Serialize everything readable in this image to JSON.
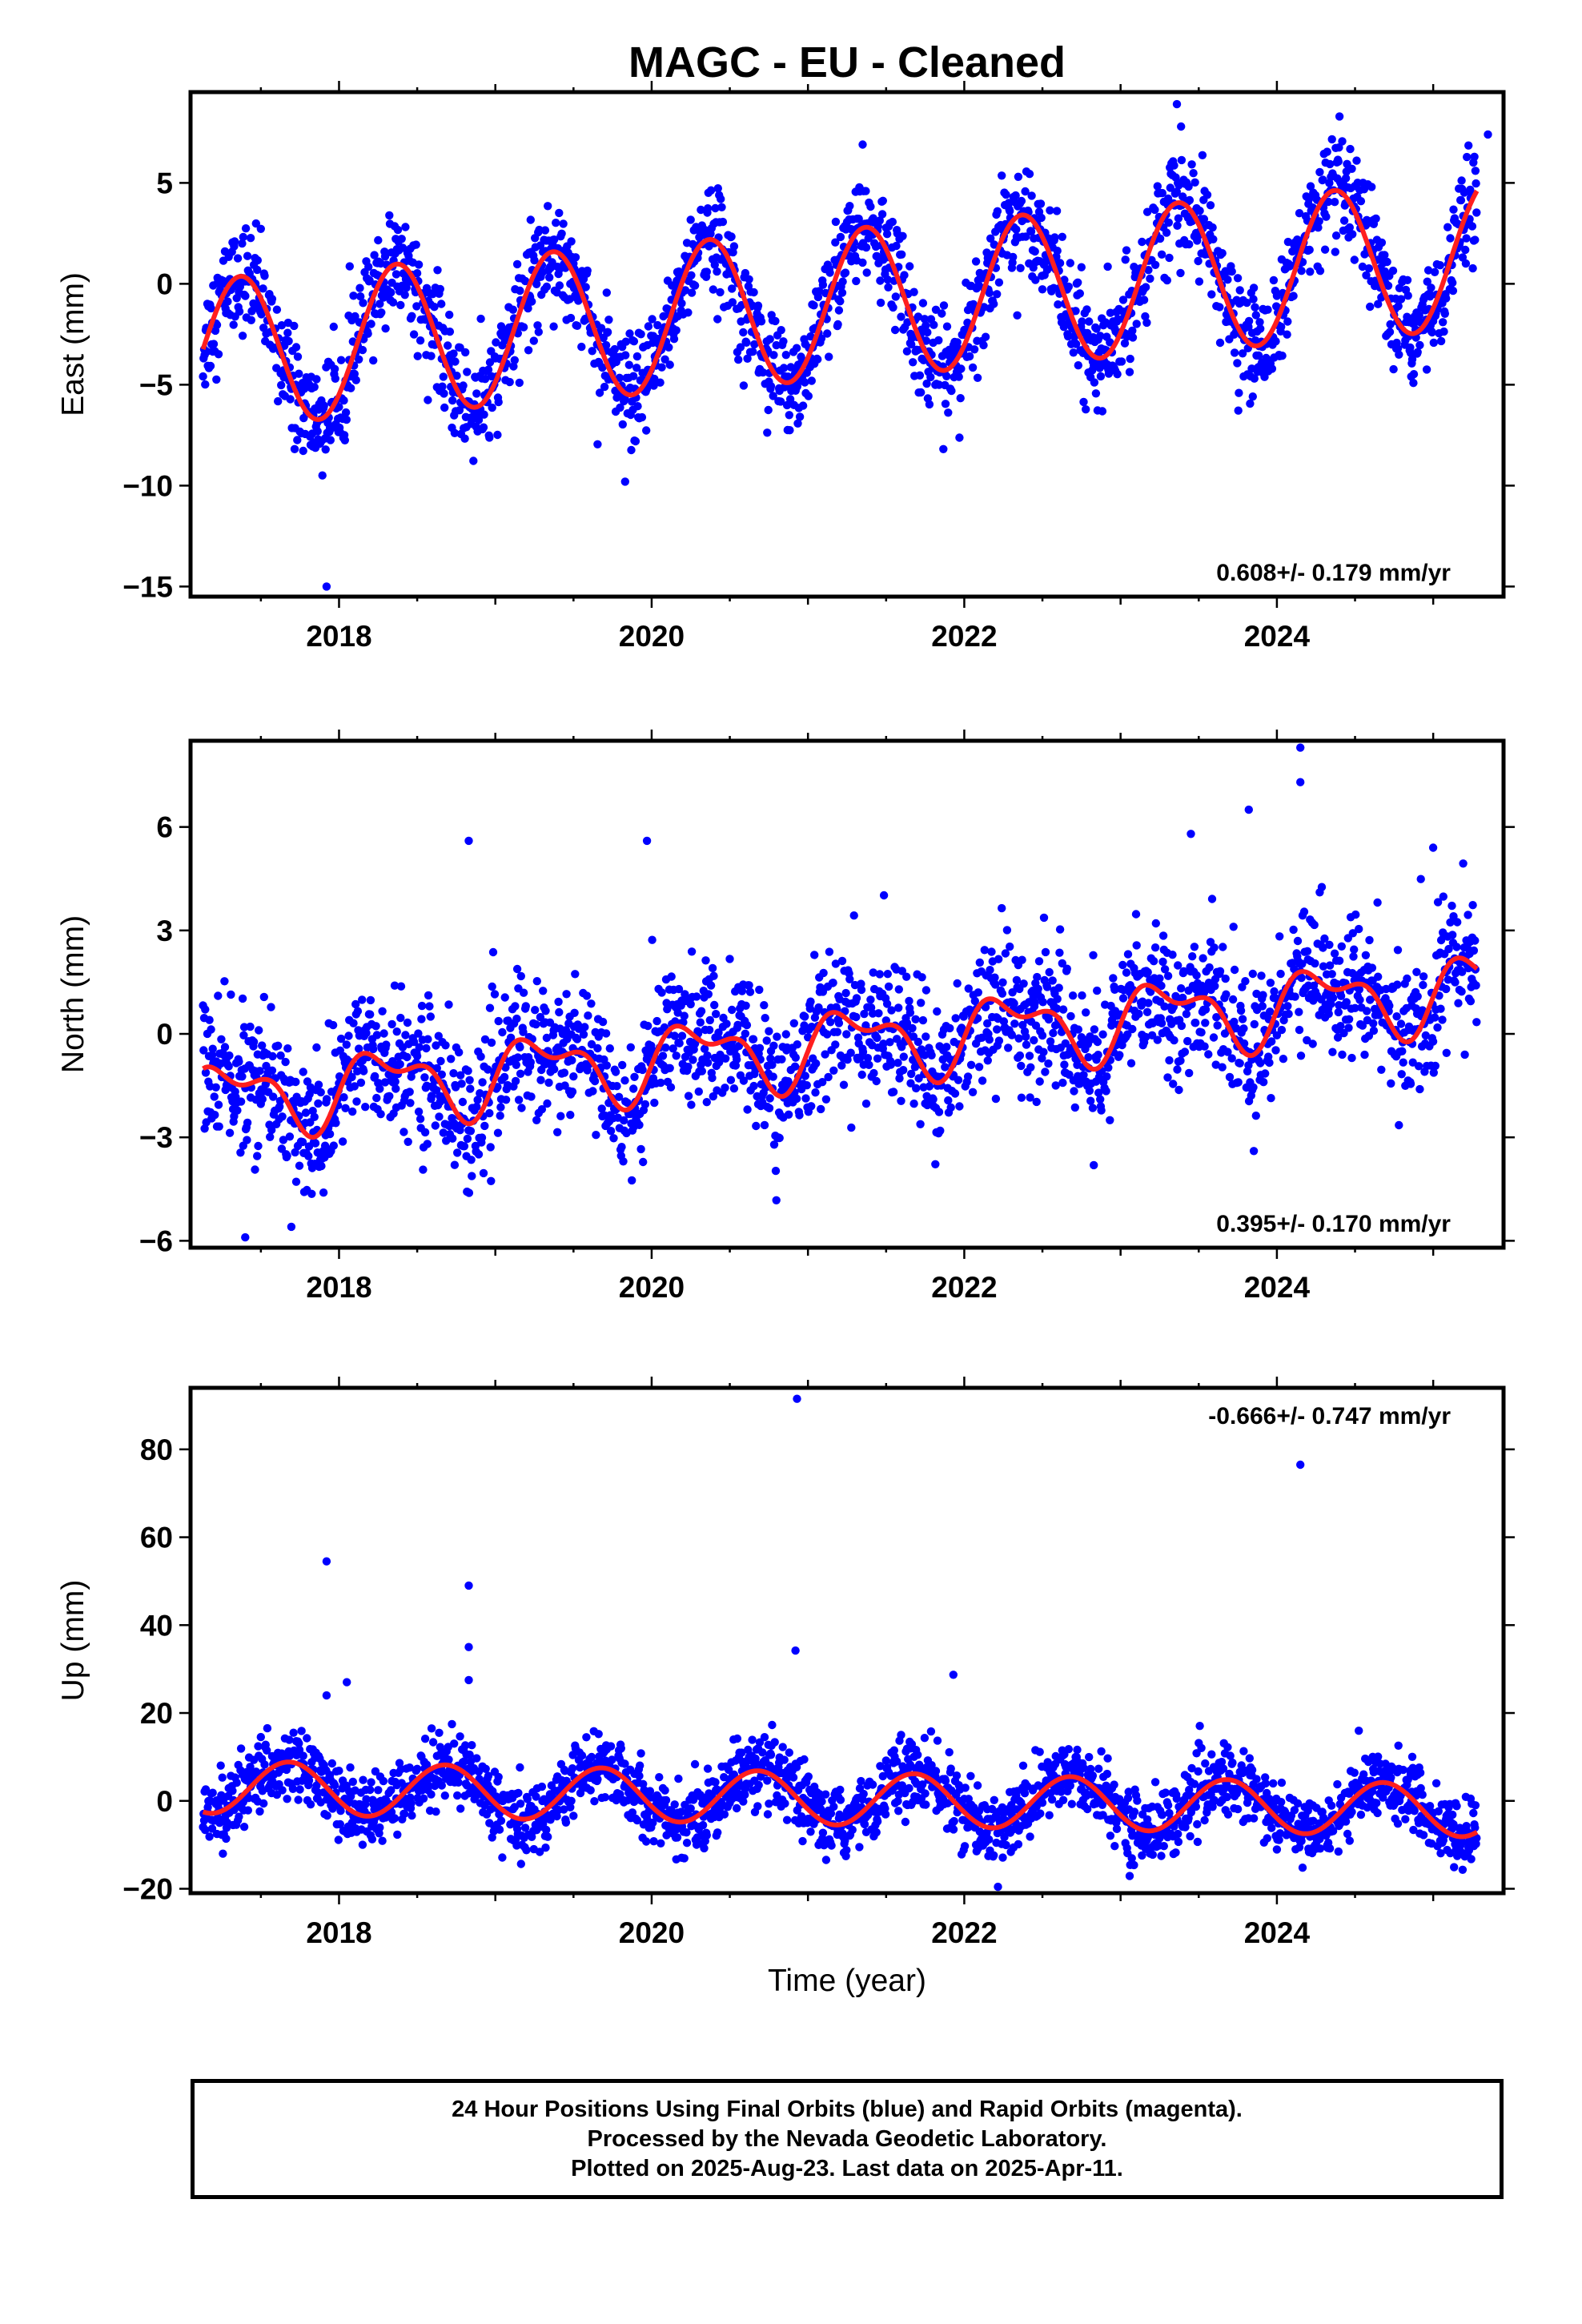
{
  "title": "MAGC  - EU - Cleaned",
  "x_axis_label": "Time (year)",
  "x_ticks": [
    "2018",
    "2020",
    "2022",
    "2024"
  ],
  "footer": {
    "line1": "24 Hour Positions Using Final Orbits (blue) and Rapid Orbits (magenta).",
    "line2": "Processed by the Nevada Geodetic Laboratory.",
    "line3": "Plotted on 2025-Aug-23. Last data on 2025-Apr-11."
  },
  "colors": {
    "points": "#0000ff",
    "fit": "#ff1f1f",
    "frame": "#000000"
  },
  "chart_data": [
    {
      "type": "scatter",
      "component": "East",
      "ylabel": "East (mm)",
      "xlim": [
        2017.05,
        2025.45
      ],
      "ylim": [
        -15.5,
        9.5
      ],
      "yticks": [
        5,
        0,
        -5,
        -10,
        -15
      ],
      "ytick_labels": [
        "5",
        "0",
        "−10",
        "−15"
      ],
      "ytick_label_values": [
        5,
        0,
        -10,
        -15
      ],
      "ytick_label_five": "−5",
      "rate_text": "0.608+/- 0.179 mm/yr",
      "rate_position": "bottom-right",
      "model": {
        "trend_mm_per_yr": 0.608,
        "offset_mm": -1.0,
        "annual_amp_mm": 3.7,
        "annual_phase_yr": 0.37
      },
      "scatter_sigma_mm": 1.3,
      "outliers": [
        {
          "x": 2017.92,
          "y": -15.0
        },
        {
          "x": 2023.36,
          "y": 8.9
        },
        {
          "x": 2025.35,
          "y": 7.4
        },
        {
          "x": 2021.35,
          "y": 6.9
        },
        {
          "x": 2019.83,
          "y": -9.8
        }
      ]
    },
    {
      "type": "scatter",
      "component": "North",
      "ylabel": "North (mm)",
      "xlim": [
        2017.05,
        2025.45
      ],
      "ylim": [
        -6.2,
        8.5
      ],
      "yticks": [
        6,
        3,
        0,
        -3,
        -6
      ],
      "ytick_labels": [
        "6",
        "3",
        "0",
        "−3",
        "−6"
      ],
      "rate_text": "0.395+/- 0.170 mm/yr",
      "rate_position": "bottom-right",
      "model": {
        "trend_mm_per_yr": 0.395,
        "offset_mm": -0.3,
        "annual_amp_mm": 0.9,
        "annual_phase_yr": 0.3,
        "semiannual_amp_mm": 0.5
      },
      "scatter_sigma_mm": 1.0,
      "outliers": [
        {
          "x": 2024.15,
          "y": 8.3
        },
        {
          "x": 2024.15,
          "y": 7.3
        },
        {
          "x": 2023.82,
          "y": 6.5
        },
        {
          "x": 2018.83,
          "y": 5.6
        },
        {
          "x": 2019.97,
          "y": 5.6
        },
        {
          "x": 2023.45,
          "y": 5.8
        },
        {
          "x": 2025.0,
          "y": 5.4
        },
        {
          "x": 2017.4,
          "y": -5.9
        }
      ]
    },
    {
      "type": "scatter",
      "component": "Up",
      "ylabel": "Up (mm)",
      "xlim": [
        2017.05,
        2025.45
      ],
      "ylim": [
        -21,
        94
      ],
      "yticks": [
        80,
        60,
        40,
        20,
        0,
        -20
      ],
      "ytick_labels": [
        "80",
        "60",
        "40",
        "20",
        "0",
        "−20"
      ],
      "rate_text": "-0.666+/- 0.747 mm/yr",
      "rate_position": "top-right",
      "model": {
        "trend_mm_per_yr": -0.666,
        "offset_mm": 0.5,
        "annual_amp_mm": 6.0,
        "annual_phase_yr": 0.68
      },
      "scatter_sigma_mm": 4.0,
      "outliers": [
        {
          "x": 2020.93,
          "y": 91.5
        },
        {
          "x": 2024.15,
          "y": 76.5
        },
        {
          "x": 2017.92,
          "y": 54.5
        },
        {
          "x": 2018.83,
          "y": 49.0
        },
        {
          "x": 2018.83,
          "y": 35.0
        },
        {
          "x": 2020.92,
          "y": 34.2
        },
        {
          "x": 2018.83,
          "y": 27.5
        },
        {
          "x": 2018.05,
          "y": 27.0
        },
        {
          "x": 2021.93,
          "y": 28.7
        },
        {
          "x": 2017.92,
          "y": 24.0
        }
      ]
    }
  ]
}
